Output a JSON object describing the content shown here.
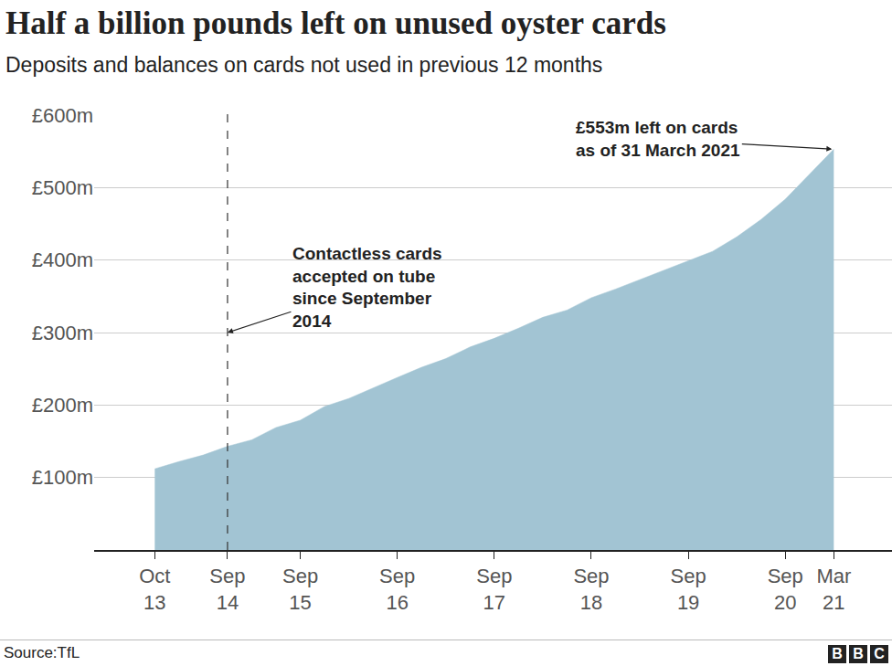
{
  "chart_data": {
    "type": "area",
    "title": "Half a billion pounds left on unused oyster cards",
    "subtitle": "Deposits and balances on cards not used in previous 12 months",
    "categories": [
      "Oct 13",
      null,
      null,
      "Sep 14",
      null,
      null,
      "Sep 15",
      null,
      null,
      null,
      "Sep 16",
      null,
      null,
      null,
      "Sep 17",
      null,
      null,
      null,
      "Sep 18",
      null,
      null,
      null,
      "Sep 19",
      null,
      null,
      null,
      "Sep 20",
      null,
      "Mar 21"
    ],
    "values": [
      112,
      122,
      131,
      143,
      152,
      169,
      179,
      198,
      209,
      224,
      238,
      252,
      264,
      280,
      292,
      306,
      321,
      331,
      348,
      360,
      373,
      385,
      398,
      412,
      432,
      456,
      484,
      519,
      553
    ],
    "color": "#a2c4d3",
    "ylim": [
      0,
      600
    ],
    "yticks": [
      {
        "value": 100,
        "label": "£100m"
      },
      {
        "value": 200,
        "label": "£200m"
      },
      {
        "value": 300,
        "label": "£300m"
      },
      {
        "value": 400,
        "label": "£400m"
      },
      {
        "value": 500,
        "label": "£500m"
      },
      {
        "value": 600,
        "label": "£600m"
      }
    ],
    "grid": true,
    "annotations": [
      {
        "x": "Sep 14",
        "line_style": "dashed",
        "text": [
          "Contactless cards",
          "accepted on tube",
          "since September",
          "2014"
        ]
      },
      {
        "x": "Mar 21",
        "text": [
          "£553m left on cards",
          "as of 31 March 2021"
        ]
      }
    ],
    "source": "Source:TfL",
    "logo": "BBC"
  }
}
